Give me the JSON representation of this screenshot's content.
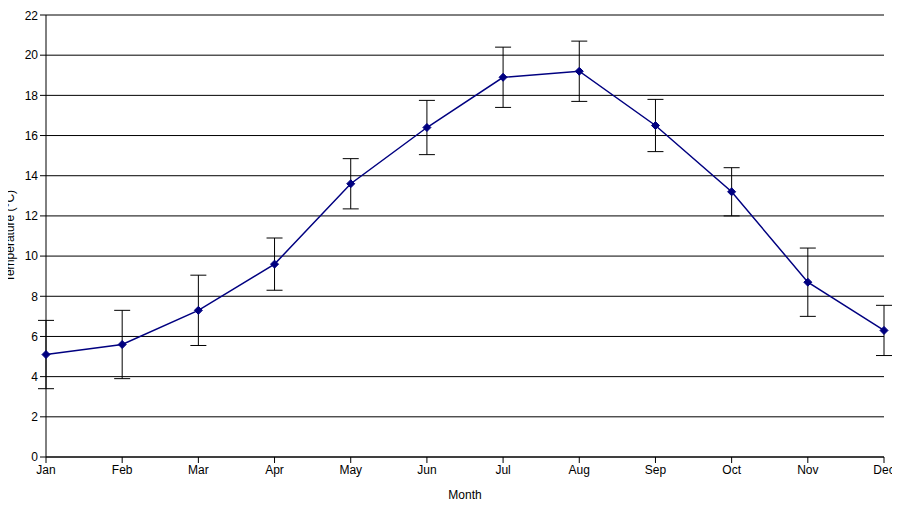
{
  "chart_data": {
    "type": "line",
    "x_label": "Month",
    "y_label": "Temperature (°C)",
    "categories": [
      "Jan",
      "Feb",
      "Mar",
      "Apr",
      "May",
      "Jun",
      "Jul",
      "Aug",
      "Sep",
      "Oct",
      "Nov",
      "Dec"
    ],
    "values": [
      5.1,
      5.6,
      7.3,
      9.6,
      13.6,
      16.4,
      18.9,
      19.2,
      16.5,
      13.2,
      8.7,
      6.3
    ],
    "errors": [
      1.7,
      1.7,
      1.75,
      1.3,
      1.25,
      1.35,
      1.5,
      1.5,
      1.3,
      1.2,
      1.7,
      1.25
    ],
    "color": "#000080",
    "marker": "diamond",
    "ylim": [
      0,
      22
    ],
    "yticks": [
      0,
      2,
      4,
      6,
      8,
      10,
      12,
      14,
      16,
      18,
      20,
      22
    ],
    "grid": true
  }
}
